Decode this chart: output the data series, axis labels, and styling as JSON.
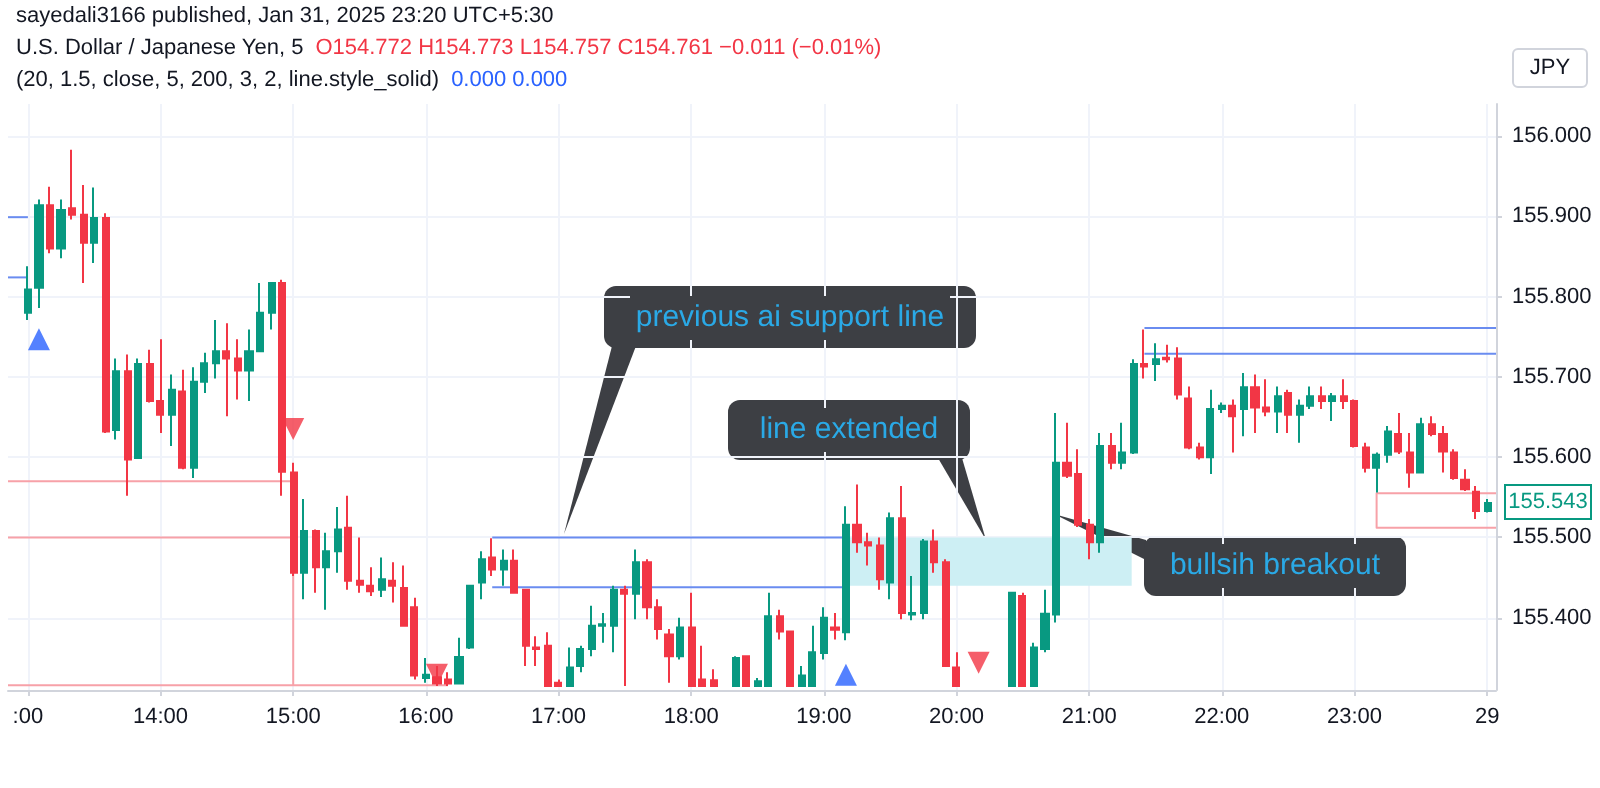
{
  "chart_data": {
    "type": "candlestick",
    "title": "U.S. Dollar / Japanese Yen, 5",
    "subtitle": "(20, 1.5, close, 5, 200, 3, 2, line.style_solid)",
    "ylabel": "JPY",
    "annotations": [
      "sayedali3166 published, Jan 31, 2025 23:20 UTC+5:30",
      "O154.772 H154.773 L154.757 C154.761 −0.011 (−0.01%)",
      "0.000 0.000",
      "previous ai support line",
      "line extended",
      "bullsih breakout",
      {
        "text": "155.543",
        "x": "2025-01-29T00:00",
        "y": 155.543
      }
    ],
    "xlim": [
      "2025-01-28T12:51",
      "2025-01-29T00:04"
    ],
    "xticks": [
      {
        "value": "2025-01-28T13:00",
        "label": ":00"
      },
      {
        "value": "2025-01-28T14:00",
        "label": "14:00"
      },
      {
        "value": "2025-01-28T15:00",
        "label": "15:00"
      },
      {
        "value": "2025-01-28T16:00",
        "label": "16:00"
      },
      {
        "value": "2025-01-28T17:00",
        "label": "17:00"
      },
      {
        "value": "2025-01-28T18:00",
        "label": "18:00"
      },
      {
        "value": "2025-01-28T19:00",
        "label": "19:00"
      },
      {
        "value": "2025-01-28T20:00",
        "label": "20:00"
      },
      {
        "value": "2025-01-28T21:00",
        "label": "21:00"
      },
      {
        "value": "2025-01-28T22:00",
        "label": "22:00"
      },
      {
        "value": "2025-01-28T23:00",
        "label": "23:00"
      },
      {
        "value": "2025-01-29T00:00",
        "label": "29"
      }
    ],
    "ylim": [
      155.31,
      156.04
    ],
    "yticks": [
      {
        "value": 155.4,
        "label": "155.400"
      },
      {
        "value": 155.5,
        "label": "155.500"
      },
      {
        "value": 155.6,
        "label": "155.600"
      },
      {
        "value": 155.7,
        "label": "155.700"
      },
      {
        "value": 155.8,
        "label": "155.800"
      },
      {
        "value": 155.9,
        "label": "155.900"
      },
      {
        "value": 156.0,
        "label": "156.000"
      }
    ],
    "grid": true,
    "series": [
      {
        "x": [
          "2025-01-28T13:00",
          "2025-01-28T13:05",
          "2025-01-28T13:10",
          "2025-01-28T13:15",
          "2025-01-28T13:20",
          "2025-01-28T13:25",
          "2025-01-28T13:30",
          "2025-01-28T13:35",
          "2025-01-28T13:40",
          "2025-01-28T13:45",
          "2025-01-28T13:50",
          "2025-01-28T13:55",
          "2025-01-28T14:00",
          "2025-01-28T14:05",
          "2025-01-28T14:10",
          "2025-01-28T14:15",
          "2025-01-28T14:20",
          "2025-01-28T14:25",
          "2025-01-28T14:30",
          "2025-01-28T14:35",
          "2025-01-28T14:40",
          "2025-01-28T14:45",
          "2025-01-28T14:50",
          "2025-01-28T14:55",
          "2025-01-28T15:00",
          "2025-01-28T15:05",
          "2025-01-28T15:10",
          "2025-01-28T15:15",
          "2025-01-28T15:20",
          "2025-01-28T15:25",
          "2025-01-28T15:30",
          "2025-01-28T15:35",
          "2025-01-28T15:40",
          "2025-01-28T15:45",
          "2025-01-28T15:50",
          "2025-01-28T15:55",
          "2025-01-28T16:00",
          "2025-01-28T16:05",
          "2025-01-28T16:10",
          "2025-01-28T16:15",
          "2025-01-28T16:20",
          "2025-01-28T16:25",
          "2025-01-28T16:30",
          "2025-01-28T16:35",
          "2025-01-28T16:40",
          "2025-01-28T16:45",
          "2025-01-28T16:50",
          "2025-01-28T16:55",
          "2025-01-28T17:00",
          "2025-01-28T17:05",
          "2025-01-28T17:10",
          "2025-01-28T17:15",
          "2025-01-28T17:20",
          "2025-01-28T17:25",
          "2025-01-28T17:30",
          "2025-01-28T17:35",
          "2025-01-28T17:40",
          "2025-01-28T17:45",
          "2025-01-28T17:50",
          "2025-01-28T17:55",
          "2025-01-28T18:00",
          "2025-01-28T18:05",
          "2025-01-28T18:10",
          "2025-01-28T18:20",
          "2025-01-28T18:25",
          "2025-01-28T18:30",
          "2025-01-28T18:35",
          "2025-01-28T18:40",
          "2025-01-28T18:45",
          "2025-01-28T18:50",
          "2025-01-28T18:55",
          "2025-01-28T19:00",
          "2025-01-28T19:05",
          "2025-01-28T19:10",
          "2025-01-28T19:15",
          "2025-01-28T19:20",
          "2025-01-28T19:25",
          "2025-01-28T19:30",
          "2025-01-28T19:35",
          "2025-01-28T19:40",
          "2025-01-28T19:45",
          "2025-01-28T19:50",
          "2025-01-28T19:55",
          "2025-01-28T20:00",
          "2025-01-28T20:25",
          "2025-01-28T20:30",
          "2025-01-28T20:35",
          "2025-01-28T20:40",
          "2025-01-28T20:45",
          "2025-01-28T20:50",
          "2025-01-28T20:55",
          "2025-01-28T21:00",
          "2025-01-28T21:05",
          "2025-01-28T21:10",
          "2025-01-28T21:15",
          "2025-01-28T21:20",
          "2025-01-28T21:25",
          "2025-01-28T21:30",
          "2025-01-28T21:35",
          "2025-01-28T21:40",
          "2025-01-28T21:45",
          "2025-01-28T21:50",
          "2025-01-28T21:55",
          "2025-01-28T22:00",
          "2025-01-28T22:05",
          "2025-01-28T22:10",
          "2025-01-28T22:15",
          "2025-01-28T22:20",
          "2025-01-28T22:25",
          "2025-01-28T22:30",
          "2025-01-28T22:35",
          "2025-01-28T22:40",
          "2025-01-28T22:45",
          "2025-01-28T22:50",
          "2025-01-28T22:55",
          "2025-01-28T23:00",
          "2025-01-28T23:05",
          "2025-01-28T23:10",
          "2025-01-28T23:15",
          "2025-01-28T23:20",
          "2025-01-28T23:25",
          "2025-01-28T23:30",
          "2025-01-28T23:35",
          "2025-01-28T23:40",
          "2025-01-28T23:45",
          "2025-01-28T23:50",
          "2025-01-28T23:55",
          "2025-01-29T00:00"
        ],
        "ohlc": [
          [
            155.78,
            155.838,
            155.771,
            155.809
          ],
          [
            155.811,
            155.921,
            155.786,
            155.914
          ],
          [
            155.914,
            155.937,
            155.854,
            155.86
          ],
          [
            155.86,
            155.921,
            155.848,
            155.908
          ],
          [
            155.91,
            155.983,
            155.896,
            155.902
          ],
          [
            155.902,
            155.939,
            155.817,
            155.867
          ],
          [
            155.867,
            155.936,
            155.842,
            155.898
          ],
          [
            155.898,
            155.904,
            155.63,
            155.632
          ],
          [
            155.634,
            155.723,
            155.622,
            155.707
          ],
          [
            155.707,
            155.728,
            155.552,
            155.597
          ],
          [
            155.599,
            155.723,
            155.599,
            155.716
          ],
          [
            155.716,
            155.734,
            155.668,
            155.67
          ],
          [
            155.67,
            155.747,
            155.63,
            155.653
          ],
          [
            155.653,
            155.703,
            155.614,
            155.684
          ],
          [
            155.682,
            155.709,
            155.585,
            155.587
          ],
          [
            155.587,
            155.712,
            155.574,
            155.694
          ],
          [
            155.694,
            155.73,
            155.68,
            155.717
          ],
          [
            155.717,
            155.771,
            155.698,
            155.732
          ],
          [
            155.732,
            155.767,
            155.651,
            155.723
          ],
          [
            155.723,
            155.747,
            155.672,
            155.708
          ],
          [
            155.708,
            155.759,
            155.67,
            155.732
          ],
          [
            155.732,
            155.817,
            155.732,
            155.78
          ],
          [
            155.78,
            155.817,
            155.759,
            155.817
          ],
          [
            155.817,
            155.821,
            155.552,
            155.582
          ],
          [
            155.581,
            155.593,
            155.452,
            155.456
          ],
          [
            155.456,
            155.548,
            155.423,
            155.508
          ],
          [
            155.508,
            155.51,
            155.431,
            155.463
          ],
          [
            155.463,
            155.506,
            155.41,
            155.483
          ],
          [
            155.483,
            155.538,
            155.456,
            155.51
          ],
          [
            155.512,
            155.552,
            155.435,
            155.446
          ],
          [
            155.446,
            155.5,
            155.431,
            155.441
          ],
          [
            155.44,
            155.463,
            155.427,
            155.433
          ],
          [
            155.435,
            155.475,
            155.426,
            155.448
          ],
          [
            155.446,
            155.469,
            155.419,
            155.44
          ],
          [
            155.437,
            155.465,
            155.39,
            155.39
          ],
          [
            155.413,
            155.425,
            155.323,
            155.328
          ],
          [
            155.325,
            155.35,
            155.319,
            155.329
          ],
          [
            155.326,
            155.34,
            155.315,
            155.318
          ],
          [
            155.323,
            155.332,
            155.315,
            155.318
          ],
          [
            155.318,
            155.375,
            155.318,
            155.351
          ],
          [
            155.363,
            155.441,
            155.361,
            155.44
          ],
          [
            155.444,
            155.483,
            155.423,
            155.473
          ],
          [
            155.475,
            155.499,
            155.452,
            155.46
          ],
          [
            155.46,
            155.485,
            155.44,
            155.471
          ],
          [
            155.471,
            155.485,
            155.431,
            155.431
          ],
          [
            155.435,
            155.435,
            155.34,
            155.365
          ],
          [
            155.363,
            155.377,
            155.34,
            155.361
          ],
          [
            155.365,
            155.382,
            155.315,
            155.315
          ],
          [
            155.319,
            155.323,
            155.315,
            155.315
          ],
          [
            155.315,
            155.363,
            155.315,
            155.338
          ],
          [
            155.34,
            155.365,
            155.332,
            155.361
          ],
          [
            155.361,
            155.415,
            155.352,
            155.39
          ],
          [
            155.39,
            155.406,
            155.369,
            155.392
          ],
          [
            155.39,
            155.44,
            155.357,
            155.435
          ],
          [
            155.435,
            155.44,
            155.315,
            155.43
          ],
          [
            155.43,
            155.485,
            155.398,
            155.469
          ],
          [
            155.469,
            155.473,
            155.398,
            155.413
          ],
          [
            155.413,
            155.423,
            155.373,
            155.386
          ],
          [
            155.379,
            155.386,
            155.319,
            155.352
          ],
          [
            155.352,
            155.4,
            155.348,
            155.388
          ],
          [
            155.388,
            155.431,
            155.315,
            155.315
          ],
          [
            155.323,
            155.365,
            155.315,
            155.315
          ],
          [
            155.322,
            155.336,
            155.315,
            155.315
          ],
          [
            155.315,
            155.352,
            155.315,
            155.35
          ],
          [
            155.352,
            155.352,
            155.315,
            155.315
          ],
          [
            155.315,
            155.325,
            155.315,
            155.321
          ],
          [
            155.315,
            155.431,
            155.315,
            155.402
          ],
          [
            155.402,
            155.41,
            155.373,
            155.383
          ],
          [
            155.383,
            155.383,
            155.315,
            155.315
          ],
          [
            155.315,
            155.34,
            155.315,
            155.328
          ],
          [
            155.315,
            155.39,
            155.315,
            155.357
          ],
          [
            155.356,
            155.413,
            155.348,
            155.4
          ],
          [
            155.388,
            155.406,
            155.373,
            155.385
          ],
          [
            155.382,
            155.539,
            155.372,
            155.516
          ],
          [
            155.516,
            155.566,
            155.481,
            155.494
          ],
          [
            155.494,
            155.506,
            155.465,
            155.49
          ],
          [
            155.49,
            155.5,
            155.435,
            155.448
          ],
          [
            155.444,
            155.531,
            155.423,
            155.524
          ],
          [
            155.524,
            155.564,
            155.398,
            155.406
          ],
          [
            155.404,
            155.452,
            155.397,
            155.406
          ],
          [
            155.406,
            155.498,
            155.398,
            155.495
          ],
          [
            155.495,
            155.51,
            155.456,
            155.469
          ],
          [
            155.469,
            155.473,
            155.34,
            155.34
          ],
          [
            155.338,
            155.357,
            155.315,
            155.315
          ],
          [
            155.315,
            155.431,
            155.315,
            155.431
          ],
          [
            155.427,
            155.431,
            155.315,
            155.315
          ],
          [
            155.315,
            155.369,
            155.315,
            155.363
          ],
          [
            155.361,
            155.435,
            155.357,
            155.405
          ],
          [
            155.404,
            155.655,
            155.394,
            155.593
          ],
          [
            155.593,
            155.643,
            155.574,
            155.577
          ],
          [
            155.579,
            155.61,
            155.513,
            155.516
          ],
          [
            155.516,
            155.523,
            155.473,
            155.494
          ],
          [
            155.494,
            155.63,
            155.481,
            155.614
          ],
          [
            155.614,
            155.63,
            155.585,
            155.593
          ],
          [
            155.593,
            155.643,
            155.585,
            155.606
          ],
          [
            155.606,
            155.722,
            155.604,
            155.716
          ],
          [
            155.716,
            155.759,
            155.698,
            155.713
          ],
          [
            155.716,
            155.742,
            155.695,
            155.722
          ],
          [
            155.724,
            155.74,
            155.718,
            155.722
          ],
          [
            155.723,
            155.737,
            155.672,
            155.678
          ],
          [
            155.673,
            155.688,
            155.61,
            155.612
          ],
          [
            155.612,
            155.618,
            155.597,
            155.6
          ],
          [
            155.6,
            155.684,
            155.579,
            155.66
          ],
          [
            155.66,
            155.668,
            155.655,
            155.664
          ],
          [
            155.664,
            155.672,
            155.606,
            155.651
          ],
          [
            155.66,
            155.705,
            155.626,
            155.687
          ],
          [
            155.687,
            155.703,
            155.63,
            155.662
          ],
          [
            155.662,
            155.697,
            155.651,
            155.657
          ],
          [
            155.657,
            155.688,
            155.63,
            155.676
          ],
          [
            155.68,
            155.684,
            155.63,
            155.653
          ],
          [
            155.653,
            155.672,
            155.618,
            155.664
          ],
          [
            155.664,
            155.688,
            155.66,
            155.676
          ],
          [
            155.676,
            155.688,
            155.66,
            155.67
          ],
          [
            155.67,
            155.68,
            155.645,
            155.676
          ],
          [
            155.676,
            155.697,
            155.66,
            155.67
          ],
          [
            155.67,
            155.672,
            155.612,
            155.614
          ],
          [
            155.612,
            155.618,
            155.581,
            155.587
          ],
          [
            155.587,
            155.606,
            155.556,
            155.603
          ],
          [
            155.603,
            155.639,
            155.593,
            155.632
          ],
          [
            155.629,
            155.655,
            155.604,
            155.607
          ],
          [
            155.606,
            155.63,
            155.562,
            155.581
          ],
          [
            155.581,
            155.649,
            155.581,
            155.641
          ],
          [
            155.641,
            155.651,
            155.626,
            155.629
          ],
          [
            155.629,
            155.639,
            155.581,
            155.607
          ],
          [
            155.606,
            155.61,
            155.572,
            155.574
          ],
          [
            155.572,
            155.585,
            155.558,
            155.56
          ],
          [
            155.557,
            155.564,
            155.523,
            155.533
          ],
          [
            155.533,
            155.548,
            155.531,
            155.543
          ]
        ],
        "colors": [
          "#089981",
          "#089981",
          "#f23645",
          "#089981",
          "#f23645",
          "#f23645",
          "#089981",
          "#f23645",
          "#089981",
          "#f23645",
          "#089981",
          "#f23645",
          "#f23645",
          "#089981",
          "#f23645",
          "#089981",
          "#089981",
          "#089981",
          "#f23645",
          "#f23645",
          "#089981",
          "#089981",
          "#089981",
          "#f23645",
          "#f23645",
          "#089981",
          "#f23645",
          "#089981",
          "#089981",
          "#f23645",
          "#f23645",
          "#f23645",
          "#089981",
          "#f23645",
          "#f23645",
          "#f23645",
          "#089981",
          "#f23645",
          "#f23645",
          "#089981",
          "#089981",
          "#089981",
          "#f23645",
          "#089981",
          "#f23645",
          "#f23645",
          "#f23645",
          "#f23645",
          "#f23645",
          "#089981",
          "#089981",
          "#089981",
          "#089981",
          "#089981",
          "#f23645",
          "#089981",
          "#f23645",
          "#f23645",
          "#f23645",
          "#089981",
          "#f23645",
          "#f23645",
          "#f23645",
          "#089981",
          "#f23645",
          "#089981",
          "#089981",
          "#f23645",
          "#f23645",
          "#089981",
          "#089981",
          "#089981",
          "#f23645",
          "#089981",
          "#f23645",
          "#f23645",
          "#f23645",
          "#089981",
          "#f23645",
          "#089981",
          "#089981",
          "#f23645",
          "#f23645",
          "#f23645",
          "#089981",
          "#f23645",
          "#089981",
          "#089981",
          "#089981",
          "#f23645",
          "#f23645",
          "#f23645",
          "#089981",
          "#f23645",
          "#089981",
          "#089981",
          "#f23645",
          "#089981",
          "#f23645",
          "#f23645",
          "#f23645",
          "#f23645",
          "#089981",
          "#089981",
          "#f23645",
          "#089981",
          "#f23645",
          "#f23645",
          "#089981",
          "#f23645",
          "#089981",
          "#089981",
          "#f23645",
          "#089981",
          "#f23645",
          "#f23645",
          "#f23645",
          "#089981",
          "#089981",
          "#f23645",
          "#f23645",
          "#089981",
          "#f23645",
          "#f23645",
          "#f23645",
          "#f23645",
          "#f23645",
          "#089981"
        ]
      },
      {
        "type": "line",
        "marker": "none",
        "color": "#f7a1a8",
        "x": [
          "2025-01-28T12:51",
          "2025-01-28T15:00",
          "2025-01-28T15:00"
        ],
        "values": [
          155.57,
          155.57,
          155.316
        ]
      },
      {
        "type": "line",
        "marker": "none",
        "color": "#f7a1a8",
        "x": [
          "2025-01-28T12:51",
          "2025-01-28T15:00"
        ],
        "values": [
          155.5,
          155.5
        ]
      },
      {
        "type": "line",
        "marker": "none",
        "color": "#f7a1a8",
        "x": [
          "2025-01-28T12:51",
          "2025-01-28T16:10"
        ],
        "values": [
          155.316,
          155.316
        ]
      },
      {
        "type": "line",
        "marker": "none",
        "color": "#6a8cf0",
        "x": [
          "2025-01-28T12:51",
          "2025-01-28T13:00"
        ],
        "values": [
          155.899,
          155.899
        ]
      },
      {
        "type": "line",
        "marker": "none",
        "color": "#6a8cf0",
        "x": [
          "2025-01-28T12:51",
          "2025-01-28T13:00"
        ],
        "values": [
          155.824,
          155.824
        ]
      },
      {
        "type": "line",
        "marker": "none",
        "color": "#6a8cf0",
        "x": [
          "2025-01-28T16:30",
          "2025-01-28T19:10"
        ],
        "values": [
          155.5,
          155.5
        ]
      },
      {
        "type": "line",
        "marker": "none",
        "color": "#6a8cf0",
        "x": [
          "2025-01-28T16:30",
          "2025-01-28T19:10"
        ],
        "values": [
          155.438,
          155.438
        ]
      },
      {
        "type": "line",
        "marker": "none",
        "color": "#6a8cf0",
        "x": [
          "2025-01-28T21:25",
          "2025-01-29T00:04"
        ],
        "values": [
          155.761,
          155.761
        ]
      },
      {
        "type": "line",
        "marker": "none",
        "color": "#6a8cf0",
        "x": [
          "2025-01-28T21:25",
          "2025-01-29T00:04"
        ],
        "values": [
          155.729,
          155.729
        ]
      },
      {
        "type": "line",
        "marker": "none",
        "color": "#f7a1a8",
        "x": [
          "2025-01-29T00:04",
          "2025-01-28T23:10",
          "2025-01-28T23:10",
          "2025-01-29T00:04"
        ],
        "values": [
          155.555,
          155.555,
          155.512,
          155.512
        ]
      },
      {
        "type": "bar",
        "color": "#cdeff4",
        "x": [
          "2025-01-28T20:15"
        ],
        "values": [
          0.06
        ],
        "base": [
          155.44
        ]
      },
      {
        "type": "scatter",
        "marker": "triangle",
        "color": "#2962ff",
        "x": [
          "2025-01-28T13:05",
          "2025-01-28T19:10"
        ],
        "values": [
          155.747,
          155.329
        ]
      },
      {
        "type": "scatter",
        "marker": "triangle-down",
        "color": "#f23645",
        "x": [
          "2025-01-28T15:00",
          "2025-01-28T16:05",
          "2025-01-28T20:10"
        ],
        "values": [
          155.635,
          155.329,
          155.344
        ]
      }
    ]
  }
}
